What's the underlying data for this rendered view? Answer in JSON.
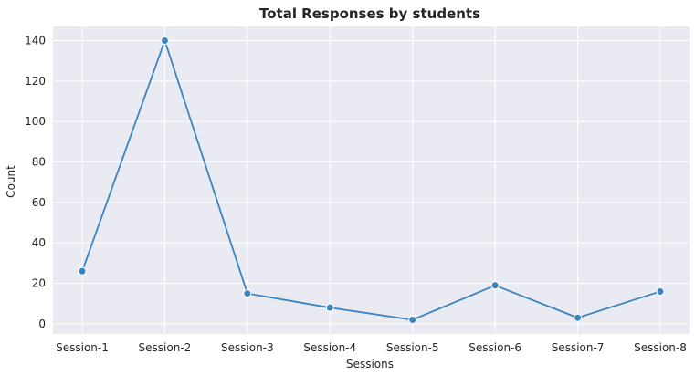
{
  "chart_data": {
    "type": "line",
    "title": "Total Responses by students",
    "xlabel": "Sessions",
    "ylabel": "Count",
    "categories": [
      "Session-1",
      "Session-2",
      "Session-3",
      "Session-4",
      "Session-5",
      "Session-6",
      "Session-7",
      "Session-8"
    ],
    "series": [
      {
        "values": [
          26,
          140,
          15,
          8,
          2,
          19,
          3,
          16
        ]
      }
    ],
    "yticks": [
      0,
      20,
      40,
      60,
      80,
      100,
      120,
      140
    ],
    "ylim": [
      -5,
      147
    ],
    "grid": true,
    "colors": {
      "background": "#eaeaf2",
      "grid": "#ffffff",
      "line": "#3a85c0"
    }
  }
}
